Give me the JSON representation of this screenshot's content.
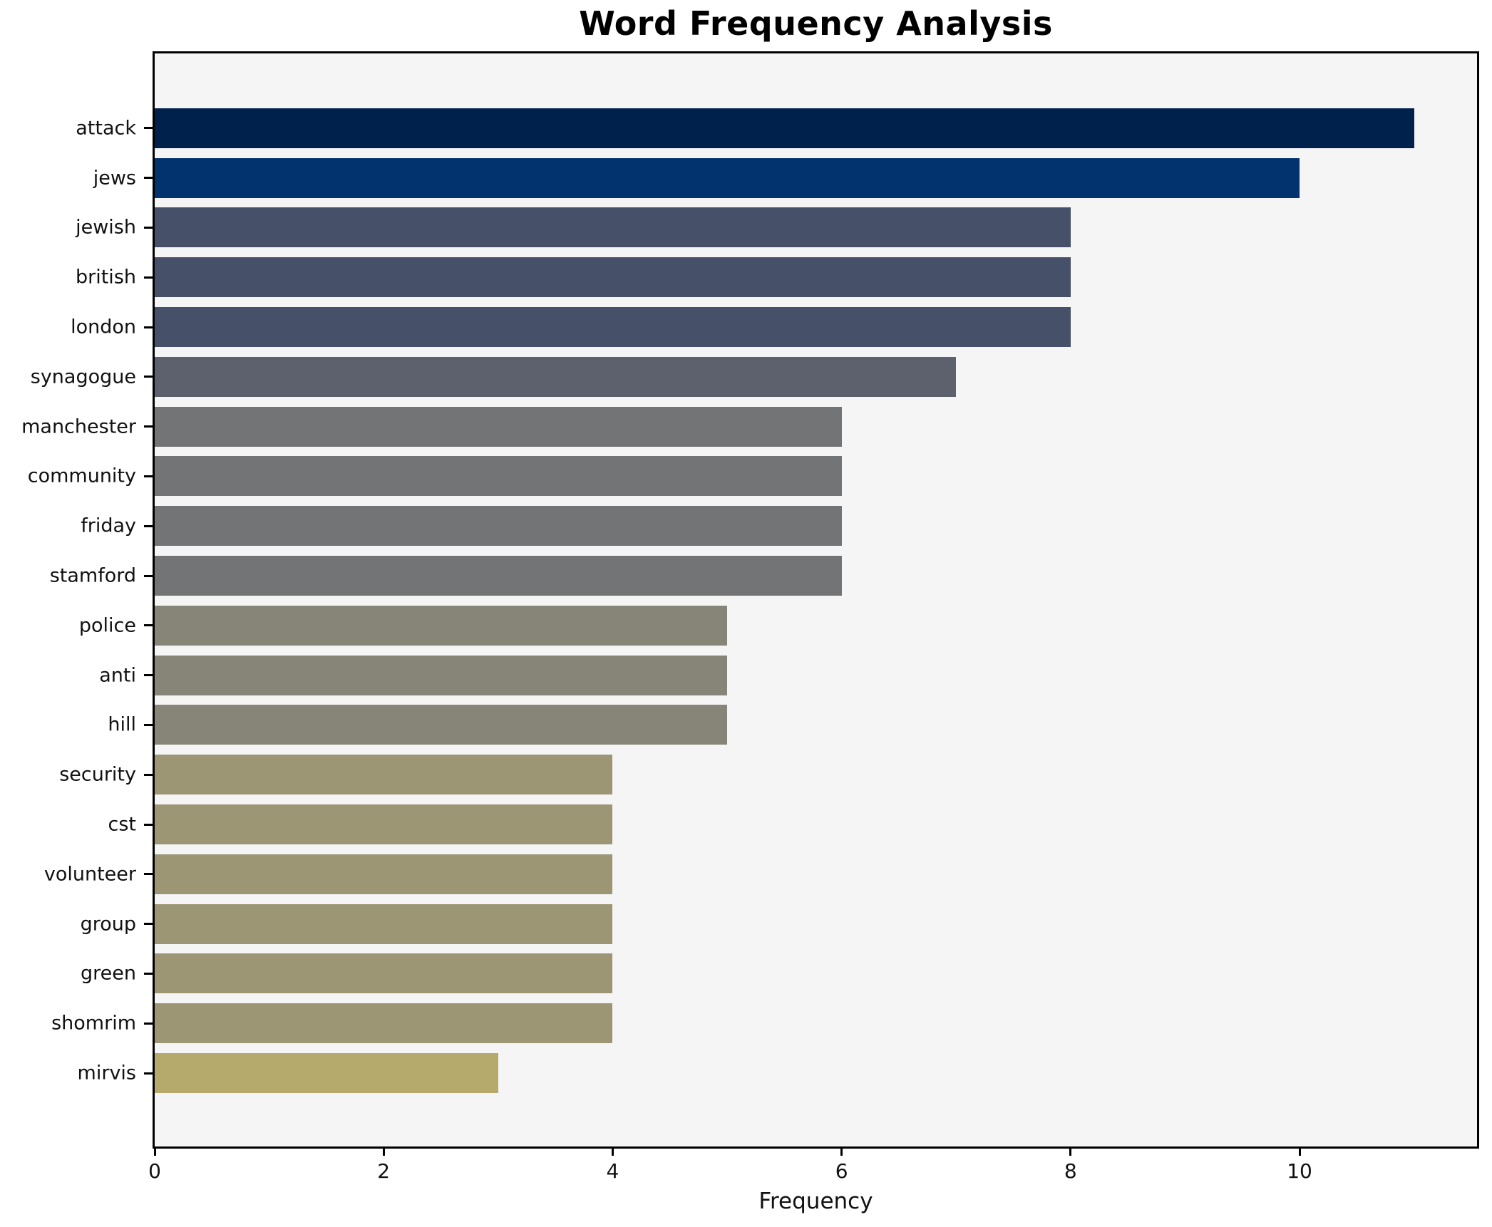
{
  "title": "Word Frequency Analysis",
  "chart_data": {
    "type": "bar",
    "orientation": "horizontal",
    "title": "Word Frequency Analysis",
    "xlabel": "Frequency",
    "ylabel": "",
    "categories": [
      "attack",
      "jews",
      "jewish",
      "british",
      "london",
      "synagogue",
      "manchester",
      "community",
      "friday",
      "stamford",
      "police",
      "anti",
      "hill",
      "security",
      "cst",
      "volunteer",
      "group",
      "green",
      "shomrim",
      "mirvis"
    ],
    "values": [
      11,
      10,
      8,
      8,
      8,
      7,
      6,
      6,
      6,
      6,
      5,
      5,
      5,
      4,
      4,
      4,
      4,
      4,
      4,
      3
    ],
    "bar_colors": [
      "#01214d",
      "#03336e",
      "#475069",
      "#475069",
      "#475069",
      "#5d616e",
      "#727476",
      "#727476",
      "#727476",
      "#727476",
      "#878577",
      "#878577",
      "#878577",
      "#9d9674",
      "#9d9674",
      "#9d9674",
      "#9d9674",
      "#9d9674",
      "#9d9674",
      "#b5a96c"
    ],
    "xlim": [
      0,
      11.55
    ],
    "xticks": [
      0,
      2,
      4,
      6,
      8,
      10
    ],
    "grid": false,
    "legend": false,
    "plot_bg": "#f5f5f6",
    "figure_bg": "#ffffff",
    "spine_color": "#000000"
  }
}
